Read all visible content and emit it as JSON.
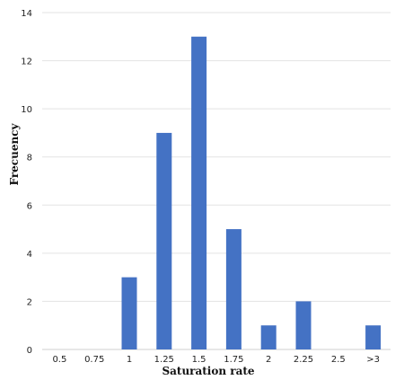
{
  "chart_data": {
    "type": "bar",
    "title": "",
    "xlabel": "Saturation rate",
    "ylabel": "Frecuency",
    "categories": [
      "0.5",
      "0.75",
      "1",
      "1.25",
      "1.5",
      "1.75",
      "2",
      "2.25",
      "2.5",
      ">3"
    ],
    "values": [
      0,
      0,
      3,
      9,
      13,
      5,
      1,
      2,
      0,
      1
    ],
    "ylim": [
      0,
      14
    ],
    "yticks": [
      0,
      2,
      4,
      6,
      8,
      10,
      12,
      14
    ],
    "grid": true,
    "legend": "none",
    "bar_color": "#4472C4",
    "grid_color": "#e3e3e3"
  }
}
